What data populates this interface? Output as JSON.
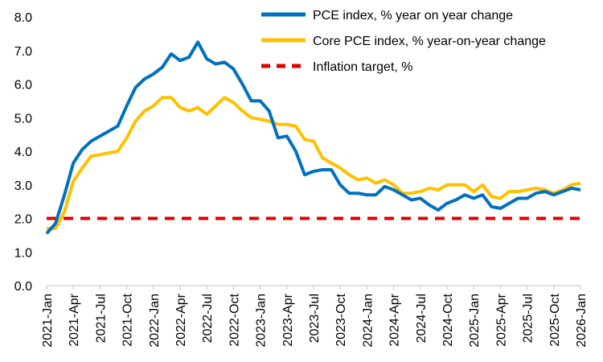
{
  "chart_data": {
    "type": "line",
    "xlim": [
      "2021-Jan",
      "2026-Jan"
    ],
    "x_tick_labels": [
      "2021-Jan",
      "2021-Apr",
      "2021-Jul",
      "2021-Oct",
      "2022-Jan",
      "2022-Apr",
      "2022-Jul",
      "2022-Oct",
      "2023-Jan",
      "2023-Apr",
      "2023-Jul",
      "2023-Oct",
      "2024-Jan",
      "2024-Apr",
      "2024-Jul",
      "2024-Oct",
      "2025-Jan",
      "2025-Apr",
      "2025-Jul",
      "2025-Oct",
      "2026-Jan"
    ],
    "y_tick_labels": [
      "0.0",
      "1.0",
      "2.0",
      "3.0",
      "4.0",
      "5.0",
      "6.0",
      "7.0",
      "8.0"
    ],
    "ylim": [
      0,
      8
    ],
    "grid": false,
    "legend_position": "top-right",
    "series": [
      {
        "name": "PCE index, % year on year change",
        "color": "#0070c0",
        "style": "solid",
        "values": [
          1.55,
          1.85,
          2.7,
          3.65,
          4.05,
          4.3,
          4.45,
          4.6,
          4.75,
          5.35,
          5.9,
          6.15,
          6.3,
          6.5,
          6.9,
          6.7,
          6.8,
          7.25,
          6.75,
          6.6,
          6.65,
          6.45,
          6.0,
          5.5,
          5.5,
          5.2,
          4.4,
          4.45,
          4.0,
          3.3,
          3.4,
          3.45,
          3.45,
          3.0,
          2.75,
          2.75,
          2.7,
          2.7,
          2.95,
          2.85,
          2.7,
          2.55,
          2.6,
          2.4,
          2.25,
          2.45,
          2.55,
          2.7,
          2.6,
          2.7,
          2.35,
          2.3,
          2.45,
          2.6,
          2.6,
          2.75,
          2.8,
          2.7,
          2.8,
          2.9,
          2.85
        ]
      },
      {
        "name": "Core PCE index, % year-on-year change",
        "color": "#ffc000",
        "style": "solid",
        "values": [
          1.7,
          1.7,
          2.2,
          3.1,
          3.5,
          3.85,
          3.9,
          3.95,
          4.0,
          4.4,
          4.9,
          5.2,
          5.35,
          5.6,
          5.6,
          5.3,
          5.2,
          5.3,
          5.1,
          5.35,
          5.6,
          5.45,
          5.2,
          5.0,
          4.95,
          4.9,
          4.8,
          4.8,
          4.75,
          4.35,
          4.3,
          3.8,
          3.65,
          3.5,
          3.3,
          3.15,
          3.2,
          3.05,
          3.15,
          3.0,
          2.75,
          2.75,
          2.8,
          2.9,
          2.85,
          3.0,
          3.0,
          3.0,
          2.8,
          3.0,
          2.65,
          2.6,
          2.8,
          2.8,
          2.85,
          2.9,
          2.85,
          2.75,
          2.85,
          3.0,
          3.05
        ]
      },
      {
        "name": "Inflation target, %",
        "color": "#e00000",
        "style": "dashed",
        "values": [
          2.0,
          2.0,
          2.0,
          2.0,
          2.0,
          2.0,
          2.0,
          2.0,
          2.0,
          2.0,
          2.0,
          2.0,
          2.0,
          2.0,
          2.0,
          2.0,
          2.0,
          2.0,
          2.0,
          2.0,
          2.0,
          2.0,
          2.0,
          2.0,
          2.0,
          2.0,
          2.0,
          2.0,
          2.0,
          2.0,
          2.0,
          2.0,
          2.0,
          2.0,
          2.0,
          2.0,
          2.0,
          2.0,
          2.0,
          2.0,
          2.0,
          2.0,
          2.0,
          2.0,
          2.0,
          2.0,
          2.0,
          2.0,
          2.0,
          2.0,
          2.0,
          2.0,
          2.0,
          2.0,
          2.0,
          2.0,
          2.0,
          2.0,
          2.0,
          2.0,
          2.0
        ]
      }
    ]
  }
}
